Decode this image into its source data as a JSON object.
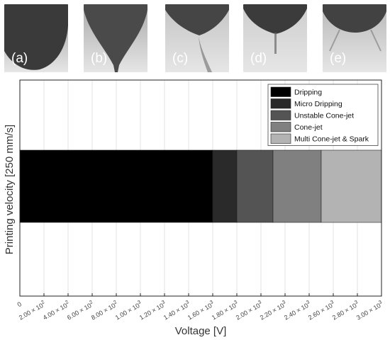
{
  "photos": [
    {
      "label": "(a)",
      "bg": "#9a9a9a",
      "tip": "#3a3a3a"
    },
    {
      "label": "(b)",
      "bg": "#a9a9a9",
      "tip": "#4a4a4a"
    },
    {
      "label": "(c)",
      "bg": "#c3c3c3",
      "tip": "#454545"
    },
    {
      "label": "(d)",
      "bg": "#cdcdcd",
      "tip": "#3b3b3b"
    },
    {
      "label": "(e)",
      "bg": "#b8b8b8",
      "tip": "#424242"
    }
  ],
  "chart_data": {
    "type": "bar",
    "orientation": "horizontal-stacked",
    "xlabel": "Voltage [V]",
    "ylabel": "Printing velocity [250 mm/s]",
    "xlim": [
      0,
      3000
    ],
    "xticks": [
      0,
      200,
      400,
      600,
      800,
      1000,
      1200,
      1400,
      1600,
      1800,
      2000,
      2200,
      2400,
      2600,
      2800,
      3000
    ],
    "xtick_labels": [
      {
        "mantissa": "0",
        "exp": ""
      },
      {
        "mantissa": "2.00",
        "exp": "2"
      },
      {
        "mantissa": "4.00",
        "exp": "2"
      },
      {
        "mantissa": "6.00",
        "exp": "2"
      },
      {
        "mantissa": "8.00",
        "exp": "2"
      },
      {
        "mantissa": "1.00",
        "exp": "3"
      },
      {
        "mantissa": "1.20",
        "exp": "3"
      },
      {
        "mantissa": "1.40",
        "exp": "3"
      },
      {
        "mantissa": "1.60",
        "exp": "3"
      },
      {
        "mantissa": "1.80",
        "exp": "3"
      },
      {
        "mantissa": "2.00",
        "exp": "3"
      },
      {
        "mantissa": "2.20",
        "exp": "3"
      },
      {
        "mantissa": "2.40",
        "exp": "3"
      },
      {
        "mantissa": "2.60",
        "exp": "3"
      },
      {
        "mantissa": "2.80",
        "exp": "3"
      },
      {
        "mantissa": "3.00",
        "exp": "3"
      }
    ],
    "tick_times": "×",
    "tick_base": "10",
    "grid": true,
    "legend_position": "top-right",
    "series": [
      {
        "name": "Dripping",
        "start": 0,
        "end": 1600,
        "color": "#000000"
      },
      {
        "name": "Micro Dripping",
        "start": 1600,
        "end": 1800,
        "color": "#2a2a2a"
      },
      {
        "name": "Unstable Cone-jet",
        "start": 1800,
        "end": 2100,
        "color": "#545454"
      },
      {
        "name": "Cone-jet",
        "start": 2100,
        "end": 2500,
        "color": "#808080"
      },
      {
        "name": "Multi Cone-jet & Spark",
        "start": 2500,
        "end": 3000,
        "color": "#b3b3b3"
      }
    ]
  }
}
